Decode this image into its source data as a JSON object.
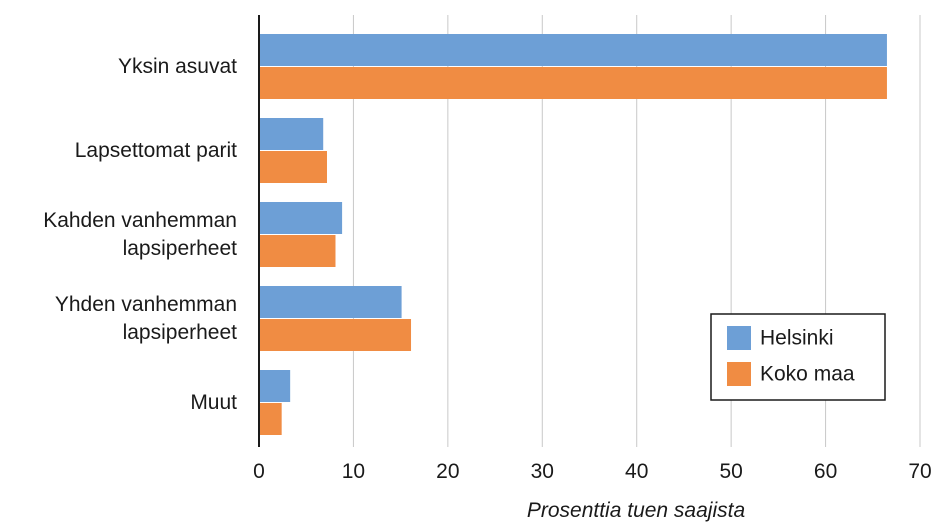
{
  "chart_data": {
    "type": "bar",
    "orientation": "horizontal",
    "categories": [
      [
        "Yksin asuvat"
      ],
      [
        "Lapsettomat parit"
      ],
      [
        "Kahden vanhemman",
        "lapsiperheet"
      ],
      [
        "Yhden vanhemman",
        "lapsiperheet"
      ],
      [
        "Muut"
      ]
    ],
    "series": [
      {
        "name": "Helsinki",
        "color": "#6d9fd6",
        "values": [
          66.5,
          6.8,
          8.8,
          15.1,
          3.3
        ]
      },
      {
        "name": "Koko maa",
        "color": "#f08c43",
        "values": [
          66.5,
          7.2,
          8.1,
          16.1,
          2.4
        ]
      }
    ],
    "xlabel": "Prosenttia tuen saajista",
    "xlim": [
      0,
      70
    ],
    "xticks": [
      0,
      10,
      20,
      30,
      40,
      50,
      60,
      70
    ],
    "grid": true,
    "legend_position": "bottom-right"
  }
}
